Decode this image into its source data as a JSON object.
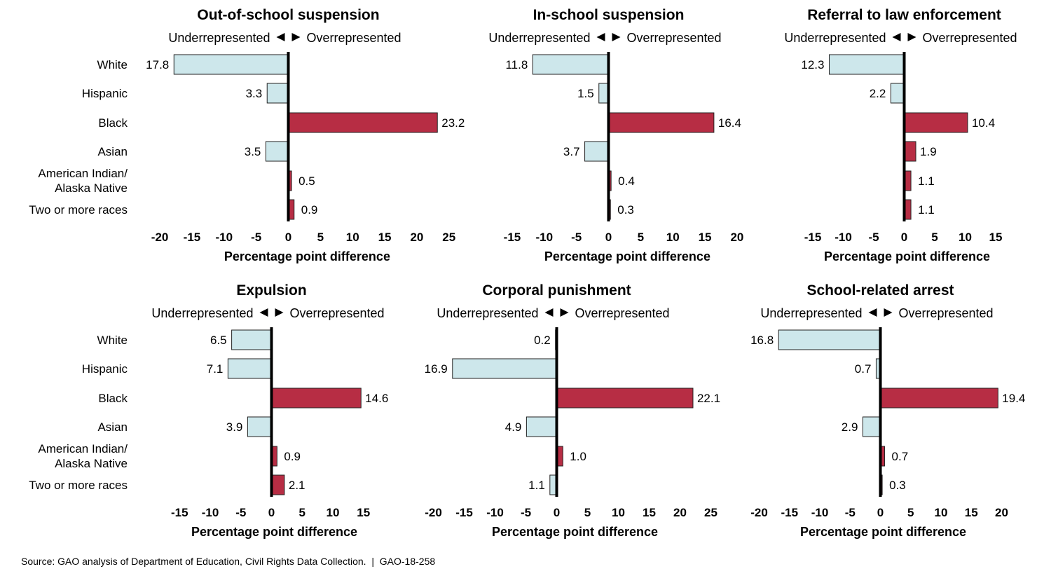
{
  "shared": {
    "direction_left": "Underrepresented",
    "direction_right": "Overrepresented",
    "xlabel": "Percentage point difference",
    "categories": [
      "White",
      "Hispanic",
      "Black",
      "Asian",
      "American Indian/ Alaska Native",
      "Two or more races"
    ]
  },
  "colors": {
    "negative": "#cde7eb",
    "positive": "#b72d44",
    "axis": "#000000"
  },
  "source_note": "Source: GAO analysis of Department of Education, Civil Rights Data Collection.",
  "report_id": "GAO-18-258",
  "chart_data": [
    {
      "type": "bar",
      "title": "Out-of-school suspension",
      "xlabel": "Percentage point difference",
      "categories": [
        "White",
        "Hispanic",
        "Black",
        "Asian",
        "American Indian/ Alaska Native",
        "Two or more races"
      ],
      "values": [
        -17.8,
        -3.3,
        23.2,
        -3.5,
        0.5,
        0.9
      ],
      "labels": [
        "17.8",
        "3.3",
        "23.2",
        "3.5",
        "0.5",
        "0.9"
      ],
      "xlim": [
        -20,
        25
      ],
      "ticks": [
        -20,
        -15,
        -10,
        -5,
        0,
        5,
        10,
        15,
        20,
        25
      ]
    },
    {
      "type": "bar",
      "title": "In-school suspension",
      "xlabel": "Percentage point difference",
      "categories": [
        "White",
        "Hispanic",
        "Black",
        "Asian",
        "American Indian/ Alaska Native",
        "Two or more races"
      ],
      "values": [
        -11.8,
        -1.5,
        16.4,
        -3.7,
        0.4,
        0.3
      ],
      "labels": [
        "11.8",
        "1.5",
        "16.4",
        "3.7",
        "0.4",
        "0.3"
      ],
      "xlim": [
        -15,
        20
      ],
      "ticks": [
        -15,
        -10,
        -5,
        0,
        5,
        10,
        15,
        20
      ]
    },
    {
      "type": "bar",
      "title": "Referral to law enforcement",
      "xlabel": "Percentage point difference",
      "categories": [
        "White",
        "Hispanic",
        "Black",
        "Asian",
        "American Indian/ Alaska Native",
        "Two or more races"
      ],
      "values": [
        -12.3,
        -2.2,
        10.4,
        1.9,
        1.1,
        1.1
      ],
      "labels": [
        "12.3",
        "2.2",
        "10.4",
        "1.9",
        "1.1",
        "1.1"
      ],
      "xlim": [
        -15,
        15
      ],
      "ticks": [
        -15,
        -10,
        -5,
        0,
        5,
        10,
        15
      ]
    },
    {
      "type": "bar",
      "title": "Expulsion",
      "xlabel": "Percentage point difference",
      "categories": [
        "White",
        "Hispanic",
        "Black",
        "Asian",
        "American Indian/ Alaska Native",
        "Two or more races"
      ],
      "values": [
        -6.5,
        -7.1,
        14.6,
        -3.9,
        0.9,
        2.1
      ],
      "labels": [
        "6.5",
        "7.1",
        "14.6",
        "3.9",
        "0.9",
        "2.1"
      ],
      "xlim": [
        -15,
        15
      ],
      "ticks": [
        -15,
        -10,
        -5,
        0,
        5,
        10,
        15
      ]
    },
    {
      "type": "bar",
      "title": "Corporal punishment",
      "xlabel": "Percentage point difference",
      "categories": [
        "White",
        "Hispanic",
        "Black",
        "Asian",
        "American Indian/ Alaska Native",
        "Two or more races"
      ],
      "values": [
        -0.2,
        -16.9,
        22.1,
        -4.9,
        1.0,
        -1.1
      ],
      "labels": [
        "0.2",
        "16.9",
        "22.1",
        "4.9",
        "1.0",
        "1.1"
      ],
      "xlim": [
        -20,
        25
      ],
      "ticks": [
        -20,
        -15,
        -10,
        -5,
        0,
        5,
        10,
        15,
        20,
        25
      ]
    },
    {
      "type": "bar",
      "title": "School-related arrest",
      "xlabel": "Percentage point difference",
      "categories": [
        "White",
        "Hispanic",
        "Black",
        "Asian",
        "American Indian/ Alaska Native",
        "Two or more races"
      ],
      "values": [
        -16.8,
        -0.7,
        19.4,
        -2.9,
        0.7,
        0.3
      ],
      "labels": [
        "16.8",
        "0.7",
        "19.4",
        "2.9",
        "0.7",
        "0.3"
      ],
      "xlim": [
        -20,
        20
      ],
      "ticks": [
        -20,
        -15,
        -10,
        -5,
        0,
        5,
        10,
        15,
        20
      ]
    }
  ]
}
